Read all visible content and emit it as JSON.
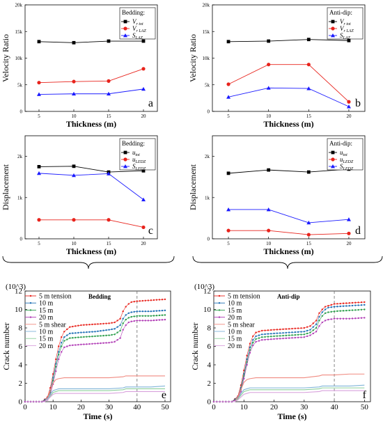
{
  "chart_data": [
    {
      "type": "line",
      "panel_label": "a",
      "xlabel": "Thickness (m)",
      "ylabel": "Velocity Ratio",
      "xlim": [
        3,
        22
      ],
      "ylim": [
        0,
        20000
      ],
      "xticks": [
        "5",
        "10",
        "15",
        "20"
      ],
      "yticks": [
        {
          "v": 0,
          "label": "0"
        },
        {
          "v": 5000,
          "label": "5k"
        },
        {
          "v": 10000,
          "label": "10k"
        },
        {
          "v": 15000,
          "label": "15k"
        },
        {
          "v": 20000,
          "label": "20k"
        }
      ],
      "legend_title": "Bedding:",
      "legend_placement": "top-right",
      "x": [
        5,
        10,
        15,
        20
      ],
      "series": [
        {
          "name": "V",
          "sub": "r_tot",
          "color": "#000000",
          "marker": "square",
          "values": [
            13100,
            12900,
            13200,
            13200
          ]
        },
        {
          "name": "V",
          "sub": "r_LAZ",
          "color": "#e8231c",
          "marker": "circle",
          "values": [
            5400,
            5600,
            5700,
            8000
          ]
        },
        {
          "name": "S",
          "sub": "LAZ",
          "color": "#1a1aff",
          "marker": "triangle",
          "values": [
            3200,
            3300,
            3300,
            4200
          ]
        }
      ]
    },
    {
      "type": "line",
      "panel_label": "b",
      "xlabel": "Thickness (m)",
      "ylabel": "Velocity Ratio",
      "xlim": [
        3,
        22
      ],
      "ylim": [
        0,
        20000
      ],
      "xticks": [
        "5",
        "10",
        "15",
        "20"
      ],
      "yticks": [
        {
          "v": 0,
          "label": "0"
        },
        {
          "v": 5000,
          "label": "5k"
        },
        {
          "v": 10000,
          "label": "10k"
        },
        {
          "v": 15000,
          "label": "15k"
        },
        {
          "v": 20000,
          "label": "20k"
        }
      ],
      "legend_title": "Anti-dip:",
      "legend_placement": "top-right",
      "x": [
        5,
        10,
        15,
        20
      ],
      "series": [
        {
          "name": "V",
          "sub": "r_tot",
          "color": "#000000",
          "marker": "square",
          "values": [
            13100,
            13200,
            13500,
            13300
          ]
        },
        {
          "name": "V",
          "sub": "r_LAZ",
          "color": "#e8231c",
          "marker": "circle",
          "values": [
            5100,
            8800,
            8800,
            1800
          ]
        },
        {
          "name": "S",
          "sub": "LAZ",
          "color": "#1a1aff",
          "marker": "triangle",
          "values": [
            2700,
            4400,
            4300,
            900
          ]
        }
      ]
    },
    {
      "type": "line",
      "panel_label": "c",
      "xlabel": "Thickness (m)",
      "ylabel": "Displacement",
      "xlim": [
        3,
        22
      ],
      "ylim": [
        0,
        2500
      ],
      "xticks": [
        "5",
        "10",
        "15",
        "20"
      ],
      "yticks": [
        {
          "v": 0,
          "label": "0"
        },
        {
          "v": 1000,
          "label": "1k"
        },
        {
          "v": 2000,
          "label": "2k"
        }
      ],
      "legend_title": "Bedding:",
      "legend_placement": "top-right",
      "x": [
        5,
        10,
        15,
        20
      ],
      "series": [
        {
          "name": "u",
          "sub": "tot",
          "color": "#000000",
          "marker": "square",
          "values": [
            1750,
            1760,
            1620,
            1650
          ]
        },
        {
          "name": "u",
          "sub": "LEDZ",
          "color": "#e8231c",
          "marker": "circle",
          "values": [
            460,
            460,
            460,
            280
          ]
        },
        {
          "name": "S",
          "sub": "LEDZ",
          "color": "#1a1aff",
          "marker": "triangle",
          "values": [
            1590,
            1540,
            1580,
            950
          ]
        }
      ]
    },
    {
      "type": "line",
      "panel_label": "d",
      "xlabel": "Thickness (m)",
      "ylabel": "Displacement",
      "xlim": [
        3,
        22
      ],
      "ylim": [
        0,
        2500
      ],
      "xticks": [
        "5",
        "10",
        "15",
        "20"
      ],
      "yticks": [
        {
          "v": 0,
          "label": "0"
        },
        {
          "v": 1000,
          "label": "1k"
        },
        {
          "v": 2000,
          "label": "2k"
        }
      ],
      "legend_title": "Anti-dip:",
      "legend_placement": "top-right",
      "x": [
        5,
        10,
        15,
        20
      ],
      "series": [
        {
          "name": "u",
          "sub": "tot",
          "color": "#000000",
          "marker": "square",
          "values": [
            1590,
            1670,
            1620,
            1690
          ]
        },
        {
          "name": "u",
          "sub": "LEDZ",
          "color": "#e8231c",
          "marker": "circle",
          "values": [
            200,
            200,
            100,
            130
          ]
        },
        {
          "name": "S",
          "sub": "LEDZ",
          "color": "#1a1aff",
          "marker": "triangle",
          "values": [
            710,
            710,
            390,
            470
          ]
        }
      ]
    },
    {
      "type": "line",
      "panel_label": "e",
      "xlabel": "Time (s)",
      "ylabel": "Crack number",
      "ymultiplier": "(10^3)",
      "xlim": [
        0,
        52
      ],
      "ylim": [
        0,
        12
      ],
      "xticks": [
        "0",
        "10",
        "20",
        "30",
        "40",
        "50"
      ],
      "yticks": [
        "0",
        "2",
        "4",
        "6",
        "8",
        "10",
        "12"
      ],
      "legend_title": "Bedding",
      "legend_placement": "top-left",
      "vline_x": 40,
      "series": [
        {
          "name": "5 m  tension",
          "color": "#e8231c",
          "marker": "dot",
          "t": [
            0,
            6,
            8,
            9,
            10,
            11,
            12,
            13,
            14,
            16,
            20,
            25,
            30,
            32,
            34,
            35,
            36,
            37,
            38,
            40,
            45,
            50
          ],
          "values": [
            0,
            0,
            0.5,
            1.5,
            3.0,
            4.6,
            6.0,
            7.0,
            7.6,
            8.1,
            8.3,
            8.4,
            8.5,
            8.6,
            9.0,
            9.8,
            10.3,
            10.6,
            10.8,
            10.9,
            11.0,
            11.1
          ]
        },
        {
          "name": "10 m",
          "color": "#1e6fb5",
          "marker": "dot",
          "t": [
            0,
            6,
            8,
            9,
            10,
            11,
            12,
            13,
            14,
            16,
            20,
            25,
            30,
            32,
            34,
            35,
            36,
            37,
            38,
            40,
            45,
            50
          ],
          "values": [
            0,
            0,
            0.4,
            1.2,
            2.6,
            4.1,
            5.4,
            6.4,
            7.0,
            7.4,
            7.5,
            7.6,
            7.8,
            7.9,
            8.3,
            9.0,
            9.4,
            9.6,
            9.7,
            9.8,
            9.8,
            9.9
          ]
        },
        {
          "name": "15 m",
          "color": "#2a9d4a",
          "marker": "dot",
          "t": [
            0,
            6,
            8,
            9,
            10,
            11,
            12,
            13,
            14,
            16,
            20,
            25,
            30,
            32,
            34,
            35,
            36,
            37,
            38,
            40,
            45,
            50
          ],
          "values": [
            0,
            0,
            0.3,
            1.0,
            2.3,
            3.8,
            5.1,
            6.0,
            6.6,
            6.9,
            7.0,
            7.1,
            7.2,
            7.3,
            7.7,
            8.5,
            8.9,
            9.1,
            9.2,
            9.3,
            9.3,
            9.4
          ]
        },
        {
          "name": "20 m",
          "color": "#b03ab5",
          "marker": "dot",
          "t": [
            0,
            6,
            8,
            9,
            10,
            11,
            12,
            13,
            14,
            16,
            20,
            25,
            30,
            32,
            34,
            35,
            36,
            37,
            38,
            40,
            45,
            50
          ],
          "values": [
            0,
            0,
            0.2,
            0.8,
            1.9,
            3.3,
            4.6,
            5.4,
            5.9,
            6.1,
            6.2,
            6.3,
            6.4,
            6.5,
            6.9,
            7.8,
            8.3,
            8.6,
            8.7,
            8.8,
            8.8,
            8.9
          ]
        },
        {
          "name": "5 m  shear",
          "color": "#f08a80",
          "marker": "none",
          "t": [
            0,
            7,
            8,
            9,
            10,
            11,
            12,
            14,
            20,
            30,
            35,
            36,
            40,
            45,
            50
          ],
          "values": [
            0,
            0,
            0.4,
            1.2,
            2.0,
            2.4,
            2.5,
            2.6,
            2.6,
            2.6,
            2.7,
            2.8,
            2.8,
            2.8,
            2.8
          ]
        },
        {
          "name": "10 m",
          "color": "#7fb4d8",
          "marker": "none",
          "t": [
            0,
            7,
            8,
            9,
            10,
            11,
            12,
            14,
            20,
            30,
            35,
            36,
            40,
            45,
            50
          ],
          "values": [
            0,
            0,
            0.3,
            0.8,
            1.2,
            1.3,
            1.4,
            1.4,
            1.4,
            1.4,
            1.5,
            1.6,
            1.6,
            1.6,
            1.7
          ]
        },
        {
          "name": "15 m",
          "color": "#8ccf9c",
          "marker": "none",
          "t": [
            0,
            7,
            8,
            9,
            10,
            11,
            12,
            14,
            20,
            30,
            35,
            36,
            40,
            45,
            50
          ],
          "values": [
            0,
            0,
            0.2,
            0.6,
            1.0,
            1.1,
            1.2,
            1.2,
            1.2,
            1.2,
            1.3,
            1.4,
            1.4,
            1.4,
            1.4
          ]
        },
        {
          "name": "20 m",
          "color": "#d8a0dc",
          "marker": "none",
          "t": [
            0,
            7,
            8,
            9,
            10,
            11,
            12,
            14,
            20,
            30,
            35,
            36,
            40,
            45,
            50
          ],
          "values": [
            0,
            0,
            0.2,
            0.5,
            0.8,
            0.9,
            0.9,
            0.9,
            0.9,
            0.9,
            1.0,
            1.1,
            1.1,
            1.1,
            1.1
          ]
        }
      ]
    },
    {
      "type": "line",
      "panel_label": "f",
      "xlabel": "Time (s)",
      "ylabel": "Crack number",
      "ymultiplier": "(10^3)",
      "xlim": [
        0,
        52
      ],
      "ylim": [
        0,
        12
      ],
      "xticks": [
        "0",
        "10",
        "20",
        "30",
        "40",
        "50"
      ],
      "yticks": [
        "0",
        "2",
        "4",
        "6",
        "8",
        "10",
        "12"
      ],
      "legend_title": "Anti-dip",
      "legend_placement": "top-left",
      "vline_x": 40,
      "series": [
        {
          "name": "5 m  tension",
          "color": "#e8231c",
          "marker": "dot",
          "t": [
            0,
            6,
            8,
            9,
            10,
            11,
            12,
            13,
            14,
            16,
            20,
            25,
            30,
            32,
            34,
            35,
            36,
            37,
            38,
            40,
            45,
            50
          ],
          "values": [
            0,
            0,
            0.6,
            1.8,
            3.4,
            5.0,
            6.3,
            7.1,
            7.5,
            7.7,
            7.8,
            7.9,
            8.0,
            8.2,
            8.8,
            9.6,
            10.0,
            10.3,
            10.4,
            10.6,
            10.7,
            10.8
          ]
        },
        {
          "name": "10 m",
          "color": "#1e6fb5",
          "marker": "dot",
          "t": [
            0,
            6,
            8,
            9,
            10,
            11,
            12,
            13,
            14,
            16,
            20,
            25,
            30,
            32,
            34,
            35,
            36,
            37,
            38,
            40,
            45,
            50
          ],
          "values": [
            0,
            0,
            0.5,
            1.5,
            3.0,
            4.6,
            5.9,
            6.7,
            7.1,
            7.3,
            7.4,
            7.5,
            7.6,
            7.8,
            8.4,
            9.2,
            9.7,
            10.0,
            10.2,
            10.3,
            10.4,
            10.5
          ]
        },
        {
          "name": "15 m",
          "color": "#2a9d4a",
          "marker": "dot",
          "t": [
            0,
            6,
            8,
            9,
            10,
            11,
            12,
            13,
            14,
            16,
            20,
            25,
            30,
            32,
            34,
            35,
            36,
            37,
            38,
            40,
            45,
            50
          ],
          "values": [
            0,
            0,
            0.4,
            1.3,
            2.8,
            4.3,
            5.6,
            6.4,
            6.8,
            7.0,
            7.1,
            7.2,
            7.3,
            7.5,
            8.0,
            8.8,
            9.3,
            9.6,
            9.7,
            9.8,
            9.9,
            10.0
          ]
        },
        {
          "name": "20 m",
          "color": "#b03ab5",
          "marker": "dot",
          "t": [
            0,
            6,
            8,
            9,
            10,
            11,
            12,
            13,
            14,
            16,
            20,
            25,
            30,
            32,
            34,
            35,
            36,
            37,
            38,
            40,
            45,
            50
          ],
          "values": [
            0,
            0,
            0.3,
            1.1,
            2.5,
            4.0,
            5.3,
            6.1,
            6.5,
            6.7,
            6.8,
            6.9,
            7.0,
            7.2,
            7.6,
            8.2,
            8.6,
            8.8,
            8.9,
            9.0,
            9.0,
            9.1
          ]
        },
        {
          "name": "5 m  shear",
          "color": "#f08a80",
          "marker": "none",
          "t": [
            0,
            7,
            8,
            9,
            10,
            11,
            12,
            14,
            20,
            30,
            35,
            36,
            40,
            45,
            50
          ],
          "values": [
            0,
            0,
            0.5,
            1.3,
            2.1,
            2.4,
            2.5,
            2.6,
            2.6,
            2.6,
            2.8,
            2.9,
            2.9,
            3.0,
            3.0
          ]
        },
        {
          "name": "10 m",
          "color": "#7fb4d8",
          "marker": "none",
          "t": [
            0,
            7,
            8,
            9,
            10,
            11,
            12,
            14,
            20,
            30,
            35,
            36,
            40,
            45,
            50
          ],
          "values": [
            0,
            0,
            0.3,
            0.9,
            1.3,
            1.4,
            1.5,
            1.5,
            1.5,
            1.5,
            1.6,
            1.7,
            1.7,
            1.7,
            1.8
          ]
        },
        {
          "name": "15 m",
          "color": "#8ccf9c",
          "marker": "none",
          "t": [
            0,
            7,
            8,
            9,
            10,
            11,
            12,
            14,
            20,
            30,
            35,
            36,
            40,
            45,
            50
          ],
          "values": [
            0,
            0,
            0.3,
            0.7,
            1.1,
            1.2,
            1.3,
            1.3,
            1.3,
            1.3,
            1.4,
            1.5,
            1.5,
            1.5,
            1.5
          ]
        },
        {
          "name": "20 m",
          "color": "#d8a0dc",
          "marker": "none",
          "t": [
            0,
            7,
            8,
            9,
            10,
            11,
            12,
            14,
            20,
            30,
            35,
            36,
            40,
            45,
            50
          ],
          "values": [
            0,
            0,
            0.2,
            0.5,
            0.8,
            0.9,
            1.0,
            1.0,
            1.0,
            1.0,
            1.1,
            1.2,
            1.2,
            1.2,
            1.2
          ]
        }
      ]
    }
  ]
}
